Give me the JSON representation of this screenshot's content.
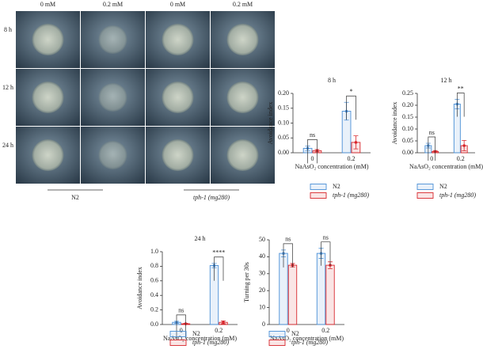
{
  "photos": {
    "column_labels": [
      "0 mM",
      "0.2 mM",
      "0 mM",
      "0.2 mM"
    ],
    "row_labels": [
      "8 h",
      "12 h",
      "24 h"
    ],
    "group_labels": [
      "N2",
      "tph-1 (mg280)"
    ]
  },
  "chart_data": [
    {
      "type": "bar",
      "title": "8 h",
      "ylabel": "Avoidance index",
      "xlabel": "NaAsO₂ concentration (mM)",
      "categories": [
        "0",
        "0.2"
      ],
      "annotations": [
        "ns",
        "*"
      ],
      "series": [
        {
          "name": "N2",
          "color": "#4a8fd6",
          "values": [
            0.015,
            0.14
          ],
          "errors": [
            0.008,
            0.03
          ]
        },
        {
          "name": "tph-1 (mg280)",
          "color": "#d8262c",
          "values": [
            0.007,
            0.035
          ],
          "errors": [
            0.004,
            0.022
          ]
        }
      ],
      "ylim": [
        0,
        0.2
      ],
      "yticks": [
        {
          "value": 0,
          "label": "0.00"
        },
        {
          "value": 0.05,
          "label": "0.05"
        },
        {
          "value": 0.1,
          "label": "0.10"
        },
        {
          "value": 0.15,
          "label": "0.15"
        },
        {
          "value": 0.2,
          "label": "0.20"
        }
      ]
    },
    {
      "type": "bar",
      "title": "12 h",
      "ylabel": "Avoidance index",
      "xlabel": "NaAsO₂ concentration (mM)",
      "categories": [
        "0",
        "0.2"
      ],
      "annotations": [
        "ns",
        "**"
      ],
      "series": [
        {
          "name": "N2",
          "color": "#4a8fd6",
          "values": [
            0.03,
            0.205
          ],
          "errors": [
            0.01,
            0.02
          ]
        },
        {
          "name": "tph-1 (mg280)",
          "color": "#d8262c",
          "values": [
            0.005,
            0.03
          ],
          "errors": [
            0.004,
            0.022
          ]
        }
      ],
      "ylim": [
        0,
        0.25
      ],
      "yticks": [
        {
          "value": 0,
          "label": "0.00"
        },
        {
          "value": 0.05,
          "label": "0.05"
        },
        {
          "value": 0.1,
          "label": "0.10"
        },
        {
          "value": 0.15,
          "label": "0.15"
        },
        {
          "value": 0.2,
          "label": "0.20"
        },
        {
          "value": 0.25,
          "label": "0.25"
        }
      ]
    },
    {
      "type": "bar",
      "title": "24 h",
      "ylabel": "Avoidance index",
      "xlabel": "NaAsO₂ concentration (mM)",
      "categories": [
        "0",
        "0.2"
      ],
      "annotations": [
        "ns",
        "****"
      ],
      "series": [
        {
          "name": "N2",
          "color": "#4a8fd6",
          "values": [
            0.03,
            0.81
          ],
          "errors": [
            0.015,
            0.03
          ]
        },
        {
          "name": "tph-1 (mg280)",
          "color": "#d8262c",
          "values": [
            0.01,
            0.03
          ],
          "errors": [
            0.008,
            0.02
          ]
        }
      ],
      "ylim": [
        0,
        1
      ],
      "yticks": [
        {
          "value": 0,
          "label": "0.0"
        },
        0.2,
        0.4,
        0.6,
        0.8,
        {
          "value": 1,
          "label": "1.0"
        }
      ]
    },
    {
      "type": "bar",
      "ylabel": "Turning per 30s",
      "xlabel": "NaAsO₂ concentration (mM)",
      "categories": [
        "0",
        "0.2"
      ],
      "annotations": [
        "ns",
        "ns"
      ],
      "series": [
        {
          "name": "N2",
          "color": "#4a8fd6",
          "values": [
            42,
            42
          ],
          "errors": [
            2,
            3
          ]
        },
        {
          "name": "tph-1 (mg280)",
          "color": "#d8262c",
          "values": [
            35,
            35
          ],
          "errors": [
            1,
            2
          ]
        }
      ],
      "ylim": [
        0,
        50
      ],
      "yticks": [
        0,
        10,
        20,
        30,
        40,
        50
      ]
    }
  ]
}
